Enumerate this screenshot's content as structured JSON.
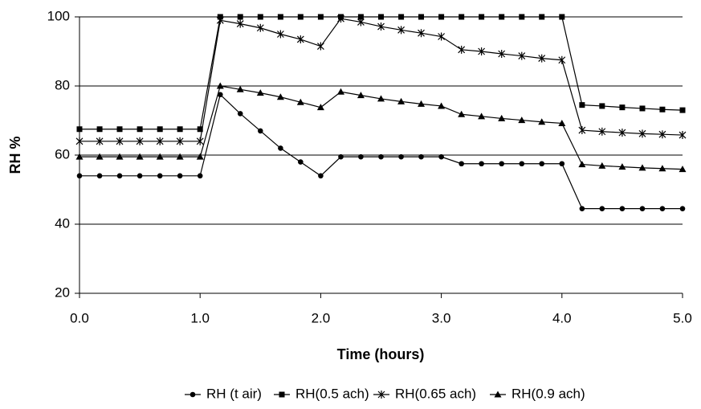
{
  "chart_data": {
    "type": "line",
    "x_label": "Time (hours)",
    "y_label": "RH %",
    "x": [
      0,
      0.167,
      0.333,
      0.5,
      0.667,
      0.833,
      1.0,
      1.167,
      1.333,
      1.5,
      1.667,
      1.833,
      2.0,
      2.167,
      2.333,
      2.5,
      2.667,
      2.833,
      3.0,
      3.167,
      3.333,
      3.5,
      3.667,
      3.833,
      4.0,
      4.167,
      4.333,
      4.5,
      4.667,
      4.833,
      5.0
    ],
    "series": [
      {
        "name": "RH (t air)",
        "color": "#000000",
        "marker": "circle",
        "values": [
          54,
          54,
          54,
          54,
          54,
          54,
          54,
          77.5,
          72,
          67,
          62,
          58,
          54,
          59.5,
          59.5,
          59.5,
          59.5,
          59.5,
          59.5,
          57.5,
          57.5,
          57.5,
          57.5,
          57.5,
          57.5,
          44.5,
          44.5,
          44.5,
          44.5,
          44.5,
          44.5
        ]
      },
      {
        "name": "RH(0.5 ach)",
        "color": "#000000",
        "marker": "square",
        "values": [
          67.5,
          67.5,
          67.5,
          67.5,
          67.5,
          67.5,
          67.5,
          100,
          100,
          100,
          100,
          100,
          100,
          100,
          100,
          100,
          100,
          100,
          100,
          100,
          100,
          100,
          100,
          100,
          100,
          74.5,
          74.2,
          73.8,
          73.5,
          73.2,
          73.0
        ]
      },
      {
        "name": "RH(0.65 ach)",
        "color": "#000000",
        "marker": "star",
        "values": [
          64,
          64,
          64,
          64,
          64,
          64,
          64,
          99,
          98,
          96.8,
          95,
          93.5,
          91.5,
          99.5,
          98.5,
          97.2,
          96.2,
          95.3,
          94.3,
          90.5,
          90,
          89.3,
          88.7,
          88,
          87.5,
          67.2,
          66.8,
          66.5,
          66.2,
          66,
          65.8
        ]
      },
      {
        "name": "RH(0.9 ach)",
        "color": "#000000",
        "marker": "triangle",
        "values": [
          59.5,
          59.5,
          59.5,
          59.5,
          59.5,
          59.5,
          59.5,
          80,
          79,
          78,
          76.8,
          75.3,
          73.8,
          78.3,
          77.3,
          76.3,
          75.5,
          74.8,
          74.2,
          71.8,
          71.2,
          70.6,
          70.1,
          69.6,
          69.2,
          57.3,
          56.9,
          56.6,
          56.3,
          56.1,
          55.9
        ]
      }
    ],
    "xlim": [
      0,
      5
    ],
    "ylim": [
      20,
      100
    ],
    "xticks": [
      {
        "value": 0,
        "label": "0.0"
      },
      {
        "value": 1,
        "label": "1.0"
      },
      {
        "value": 2,
        "label": "2.0"
      },
      {
        "value": 3,
        "label": "3.0"
      },
      {
        "value": 4,
        "label": "4.0"
      },
      {
        "value": 5,
        "label": "5.0"
      }
    ],
    "yticks": [
      20,
      40,
      60,
      80,
      100
    ],
    "grid": true,
    "legend": "bottom"
  }
}
